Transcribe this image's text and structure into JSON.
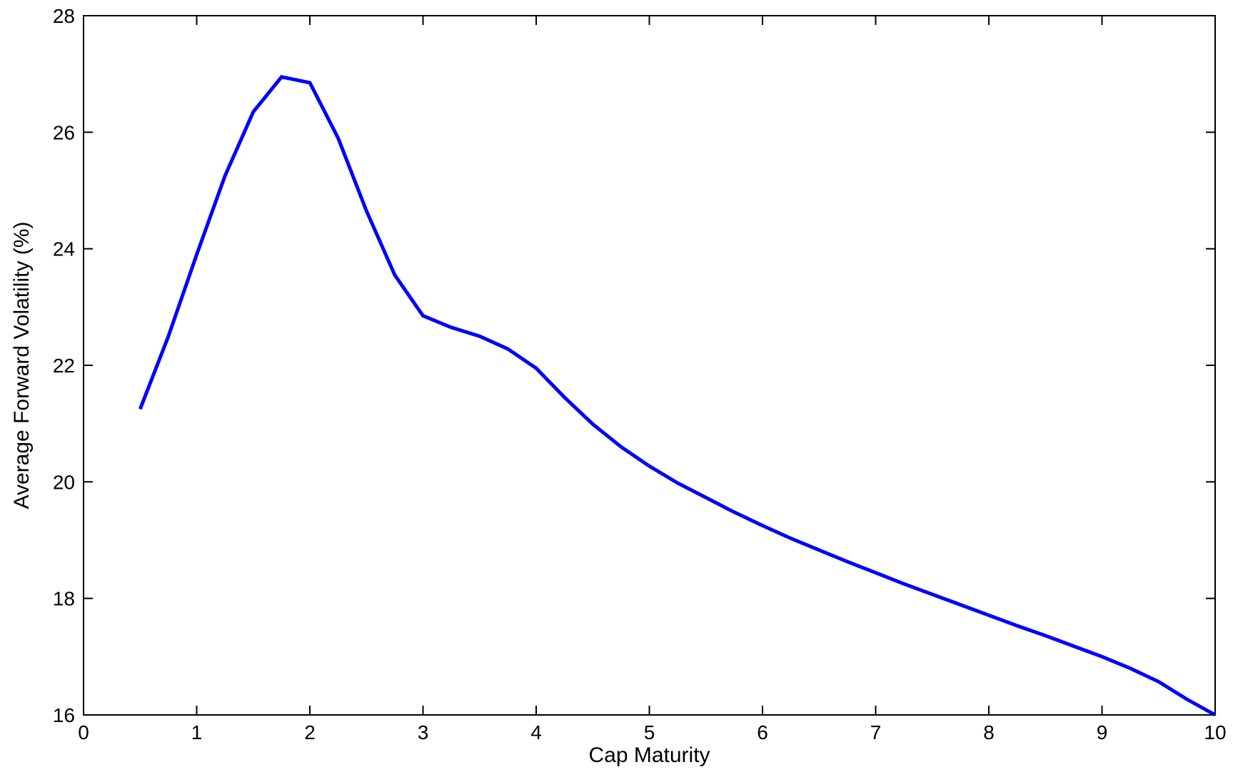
{
  "chart_data": {
    "type": "line",
    "title": "",
    "xlabel": "Cap Maturity",
    "ylabel": "Average Forward Volatility (%)",
    "xlim": [
      0,
      10
    ],
    "ylim": [
      16,
      28
    ],
    "xticks": [
      0,
      1,
      2,
      3,
      4,
      5,
      6,
      7,
      8,
      9,
      10
    ],
    "yticks": [
      16,
      18,
      20,
      22,
      24,
      26,
      28
    ],
    "grid": false,
    "legend": "none",
    "series": [
      {
        "color": "#0000ff",
        "x": [
          0.5,
          0.75,
          1.0,
          1.25,
          1.5,
          1.75,
          2.0,
          2.25,
          2.5,
          2.75,
          3.0,
          3.25,
          3.5,
          3.75,
          4.0,
          4.25,
          4.5,
          4.75,
          5.0,
          5.25,
          5.5,
          5.75,
          6.0,
          6.25,
          6.5,
          6.75,
          7.0,
          7.25,
          7.5,
          7.75,
          8.0,
          8.25,
          8.5,
          8.75,
          9.0,
          9.25,
          9.5,
          9.75,
          10.0
        ],
        "values": [
          21.25,
          22.5,
          23.9,
          25.25,
          26.35,
          26.95,
          26.85,
          25.9,
          24.65,
          23.55,
          22.85,
          22.65,
          22.5,
          22.28,
          21.95,
          21.45,
          20.99,
          20.6,
          20.27,
          19.98,
          19.73,
          19.48,
          19.25,
          19.03,
          18.83,
          18.63,
          18.44,
          18.25,
          18.07,
          17.89,
          17.71,
          17.53,
          17.36,
          17.18,
          17.0,
          16.8,
          16.57,
          16.27,
          16.0
        ]
      }
    ]
  }
}
